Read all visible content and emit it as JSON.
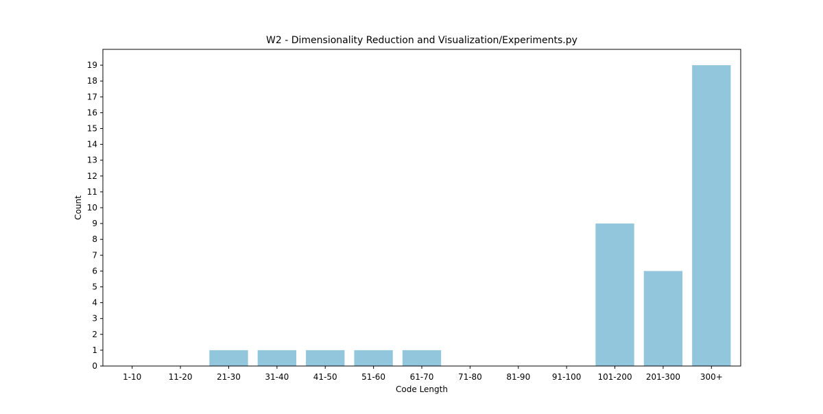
{
  "chart_data": {
    "type": "bar",
    "title": "W2 - Dimensionality Reduction and Visualization/Experiments.py",
    "xlabel": "Code Length",
    "ylabel": "Count",
    "categories": [
      "1-10",
      "11-20",
      "21-30",
      "31-40",
      "41-50",
      "51-60",
      "61-70",
      "71-80",
      "81-90",
      "91-100",
      "101-200",
      "201-300",
      "300+"
    ],
    "values": [
      0,
      0,
      1,
      1,
      1,
      1,
      1,
      0,
      0,
      0,
      9,
      6,
      19
    ],
    "ylim": [
      0,
      20
    ],
    "yticks": [
      0,
      1,
      2,
      3,
      4,
      5,
      6,
      7,
      8,
      9,
      10,
      11,
      12,
      13,
      14,
      15,
      16,
      17,
      18,
      19
    ],
    "bar_color": "#92c6dc",
    "grid": false,
    "legend": "none"
  }
}
